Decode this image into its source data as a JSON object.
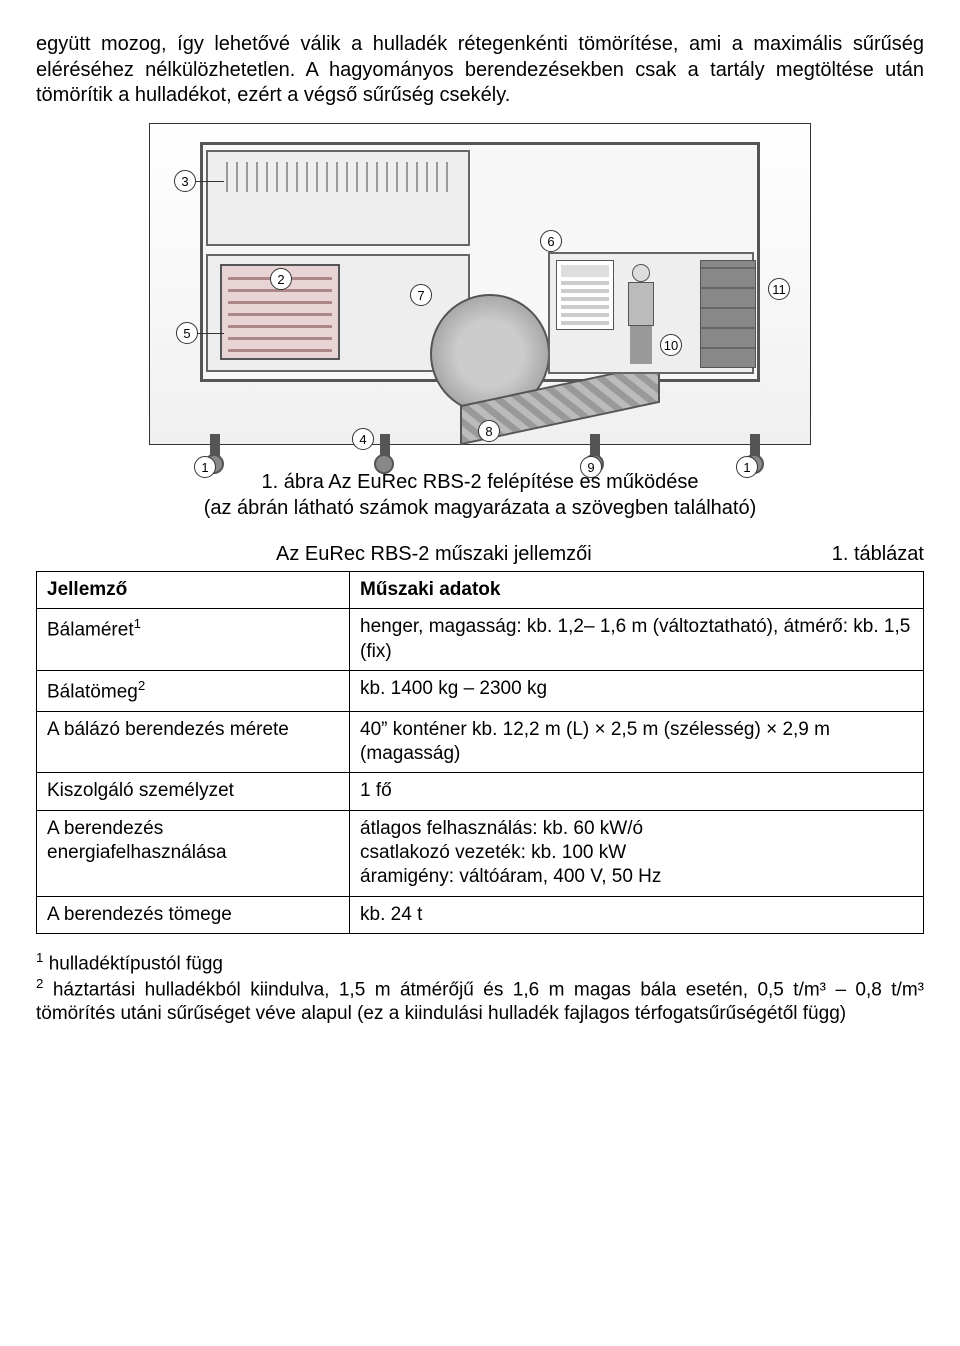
{
  "paragraph1": "együtt mozog, így lehetővé válik a hulladék rétegenkénti tömörítése, ami a maximális sűrűség eléréséhez nélkülözhetetlen. A hagyományos berendezésekben csak a tartály megtöltése után tömörítik a hulladékot, ezért a végső sűrűség csekély.",
  "caption_line1": "1. ábra Az EuRec RBS-2 felépítése és működése",
  "caption_line2": "(az ábrán látható számok magyarázata a szövegben található)",
  "table_title": "Az EuRec RBS-2 műszaki jellemzői",
  "table_number": "1. táblázat",
  "table": {
    "header": [
      "Jellemző",
      "Műszaki adatok"
    ],
    "rows": [
      {
        "label_html": "Bálaméret<sup>1</sup>",
        "value": "henger, magasság: kb. 1,2– 1,6 m (változtatható), átmérő: kb. 1,5 (fix)"
      },
      {
        "label_html": "Bálatömeg<sup>2</sup>",
        "value": "kb. 1400 kg – 2300 kg"
      },
      {
        "label_html": "A bálázó berendezés mérete",
        "value": "40” konténer kb. 12,2 m (L) × 2,5 m (szélesség) × 2,9 m (magasság)"
      },
      {
        "label_html": "Kiszolgáló személyzet",
        "value": "1 fő"
      },
      {
        "label_html": "A berendezés energiafelhasználása",
        "value": "átlagos felhasználás: kb. 60 kW/ó\ncsatlakozó vezeték: kb. 100 kW\náramigény: váltóáram, 400 V, 50 Hz"
      },
      {
        "label_html": "A berendezés tömege",
        "value": "kb. 24 t"
      }
    ]
  },
  "footnotes": [
    "hulladéktípustól függ",
    "háztartási hulladékból kiindulva, 1,5 m átmérőjű és 1,6 m magas bála esetén, 0,5 t/m³ – 0,8 t/m³ tömörítés utáni sűrűséget véve alapul (ez a kiindulási hulladék fajlagos térfogatsűrűségétől függ)"
  ],
  "callouts": [
    "1",
    "2",
    "3",
    "4",
    "5",
    "6",
    "7",
    "8",
    "9",
    "10",
    "11"
  ],
  "colors": {
    "text": "#000000",
    "border": "#000000",
    "figure_border": "#555555",
    "background": "#ffffff"
  }
}
